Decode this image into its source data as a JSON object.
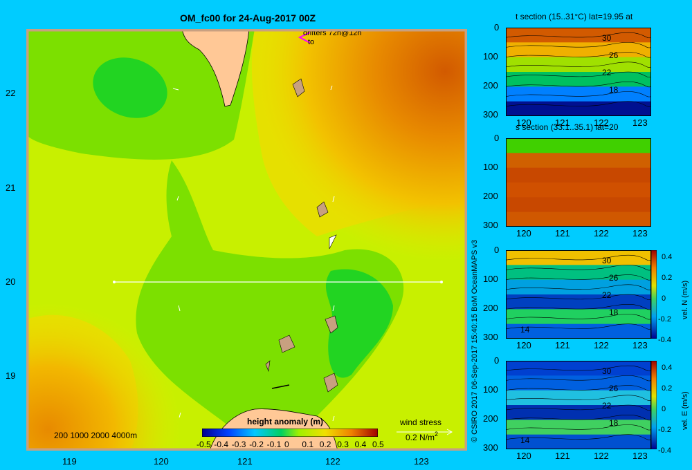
{
  "map": {
    "title": "OM_fc00 for 24-Aug-2017 00Z",
    "lat_ticks": [
      "22",
      "21",
      "20",
      "19"
    ],
    "lon_ticks": [
      "119",
      "120",
      "121",
      "122",
      "123"
    ],
    "drifters_label": "drifters 72h@12h",
    "drifters_to": "to",
    "depth_legend": "200  1000  2000  4000m",
    "colorbar_title": "height anomaly (m)",
    "colorbar_ticks": [
      "-0.5",
      "-0.4",
      "-0.3",
      "-0.2",
      "-0.1",
      "0",
      "0.1",
      "0.2",
      "0.3",
      "0.4",
      "0.5"
    ],
    "wind_label": "wind stress",
    "wind_scale": "0.2 N/m",
    "wind_scale_sup": "2"
  },
  "credit": "© CSIRO 2017   06-Sep-2017 15:40:15 BoM OceanMAPS v3",
  "panels": [
    {
      "title": "t section (15..31°C) lat=19.95 at",
      "y_ticks": [
        "0",
        "100",
        "200",
        "300"
      ],
      "x_ticks": [
        "120",
        "121",
        "122",
        "123"
      ],
      "contour_labels": [
        "30",
        "26",
        "22",
        "18"
      ],
      "colorbar": null
    },
    {
      "title": "s section (33.1..35.1) lat=20",
      "y_ticks": [
        "0",
        "100",
        "200",
        "300"
      ],
      "x_ticks": [
        "120",
        "121",
        "122",
        "123"
      ],
      "contour_labels": [],
      "colorbar": null
    },
    {
      "title": "",
      "y_ticks": [
        "0",
        "100",
        "200",
        "300"
      ],
      "x_ticks": [
        "120",
        "121",
        "122",
        "123"
      ],
      "contour_labels": [
        "30",
        "26",
        "22",
        "18",
        "14"
      ],
      "colorbar": {
        "label": "vel. N (m/s)",
        "ticks": [
          "0.4",
          "0.2",
          "0",
          "-0.2",
          "-0.4"
        ]
      }
    },
    {
      "title": "",
      "y_ticks": [
        "0",
        "100",
        "200",
        "300"
      ],
      "x_ticks": [
        "120",
        "121",
        "122",
        "123"
      ],
      "contour_labels": [
        "30",
        "26",
        "22",
        "18",
        "14"
      ],
      "colorbar": {
        "label": "vel. E (m/s)",
        "ticks": [
          "0.4",
          "0.2",
          "0",
          "-0.2",
          "-0.4"
        ]
      }
    }
  ]
}
